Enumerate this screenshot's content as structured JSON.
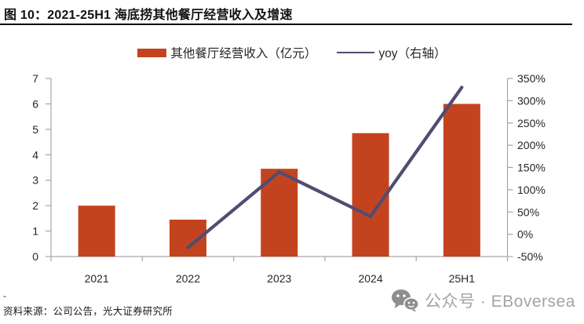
{
  "figure": {
    "title": "图 10：2021-25H1 海底捞其他餐厅经营收入及增速",
    "source": "资料来源：公司公告，光大证券研究所",
    "footnote_dash": "-",
    "watermark_text": "公众号 · EBoversea"
  },
  "legend": {
    "bar_label": "其他餐厅经营收入（亿元）",
    "line_label": "yoy（右轴）"
  },
  "colors": {
    "bar": "#C4431F",
    "line": "#504D72",
    "axis": "#A6A6A6",
    "tick_text": "#262626",
    "watermark": "#A4A4A4"
  },
  "chart_data": {
    "type": "bar",
    "subtype": "bar-line-combo",
    "categories": [
      "2021",
      "2022",
      "2023",
      "2024",
      "25H1"
    ],
    "series": [
      {
        "name": "其他餐厅经营收入（亿元）",
        "type": "bar",
        "axis": "left",
        "values": [
          2.0,
          1.45,
          3.45,
          4.85,
          6.0
        ]
      },
      {
        "name": "yoy（右轴）",
        "type": "line",
        "axis": "right",
        "unit": "%",
        "values": [
          null,
          -30,
          140,
          40,
          330
        ]
      }
    ],
    "left_axis": {
      "min": 0,
      "max": 7,
      "step": 1,
      "tick_labels": [
        "0",
        "1",
        "2",
        "3",
        "4",
        "5",
        "6",
        "7"
      ]
    },
    "right_axis": {
      "min": -50,
      "max": 350,
      "step": 50,
      "tick_labels": [
        "-50%",
        "0%",
        "50%",
        "100%",
        "150%",
        "200%",
        "250%",
        "300%",
        "350%"
      ]
    },
    "title": "图 10：2021-25H1 海底捞其他餐厅经营收入及增速",
    "xlabel": "",
    "ylabel": "",
    "grid": false,
    "legend_position": "top"
  }
}
